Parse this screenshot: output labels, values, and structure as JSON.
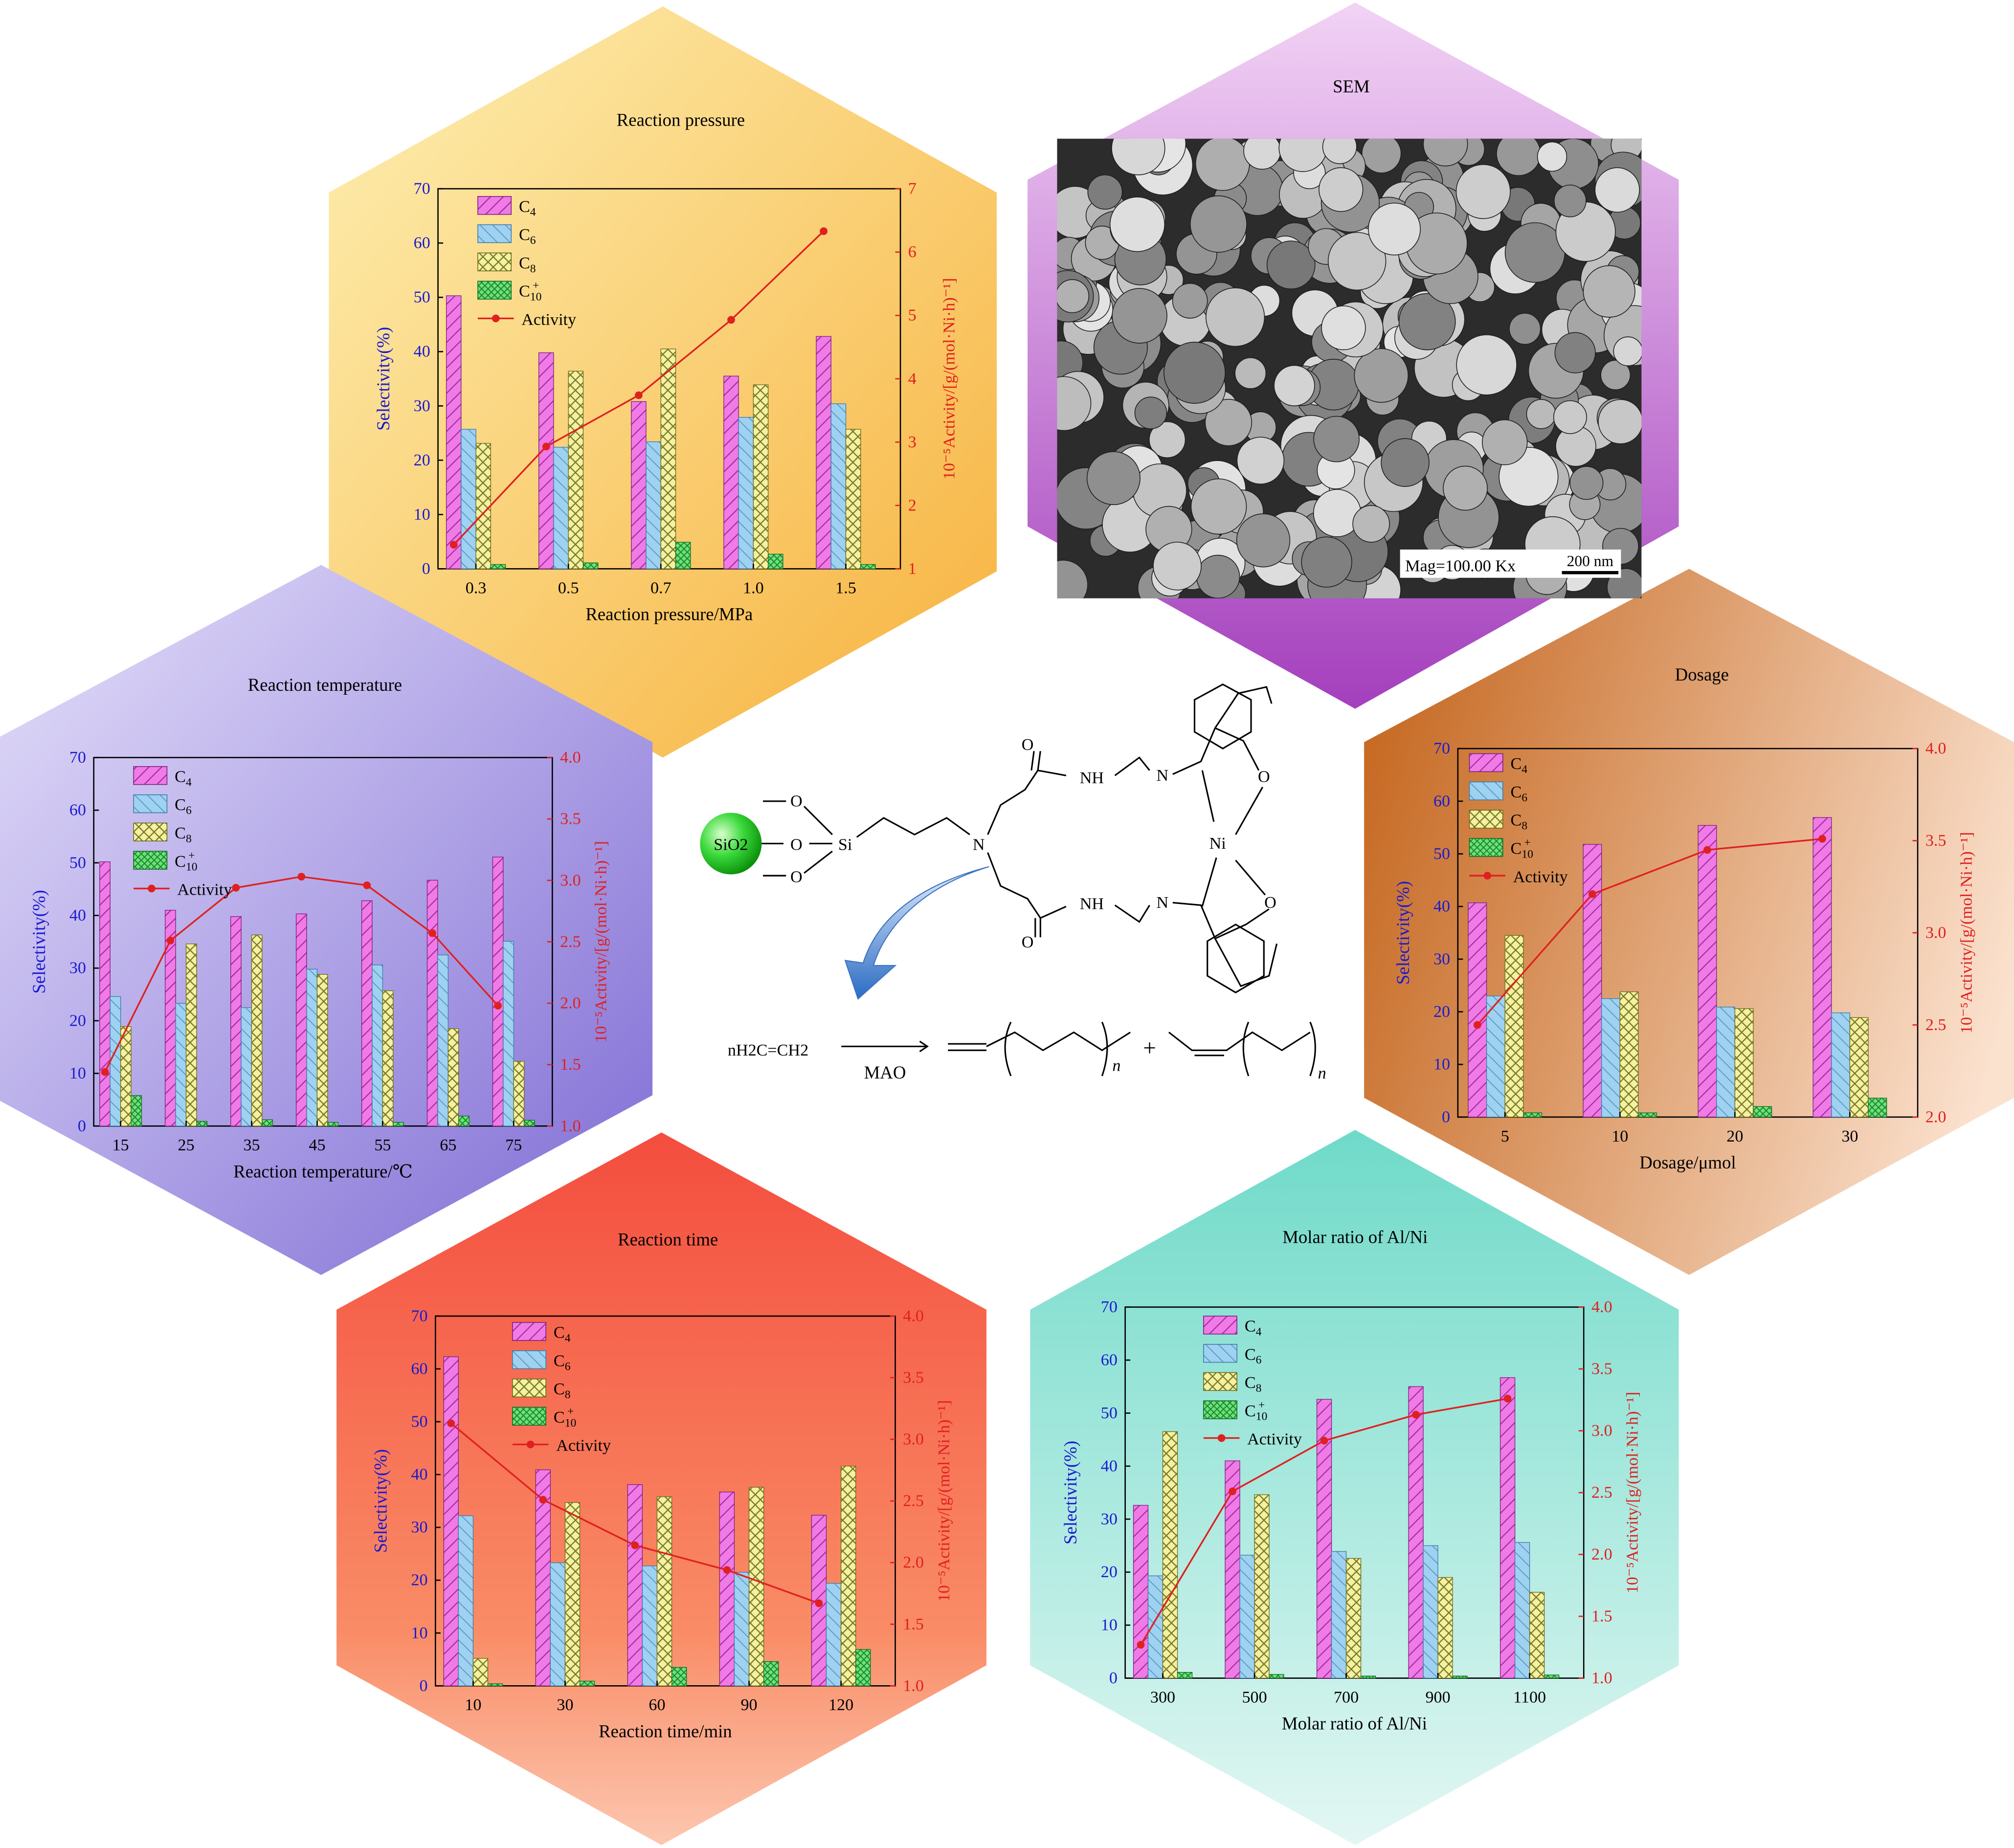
{
  "panels": {
    "sem": {
      "title": "SEM",
      "scale_label": "Mag=100.00 Kx",
      "scale_bar": "200 nm"
    }
  },
  "scheme": {
    "support_label": "SiO2",
    "reagent": "nH2C=CH2",
    "cocatalyst": "MAO",
    "plus": "+",
    "metal": "Ni",
    "n_label": "n"
  },
  "chart_data": [
    {
      "type": "bar",
      "title": "Reaction pressure",
      "xlabel": "Reaction pressure/MPa",
      "ylabel": "Selectivity(%)",
      "y2label": "10⁻⁵Activity/[g/(mol·Ni·h)⁻¹]",
      "categories": [
        "0.3",
        "0.5",
        "0.7",
        "1.0",
        "1.5"
      ],
      "ylim": [
        0,
        70
      ],
      "y2lim": [
        1,
        7
      ],
      "yticks": [
        "0",
        "10",
        "20",
        "30",
        "40",
        "50",
        "60",
        "70"
      ],
      "y2ticks": [
        "1",
        "2",
        "3",
        "4",
        "5",
        "6",
        "7"
      ],
      "series": [
        {
          "name": "C4",
          "values": [
            50.3,
            39.8,
            30.8,
            35.5,
            42.8
          ]
        },
        {
          "name": "C6",
          "values": [
            25.7,
            22.4,
            23.4,
            27.9,
            30.4
          ]
        },
        {
          "name": "C8",
          "values": [
            23.1,
            36.4,
            40.5,
            33.9,
            25.7
          ]
        },
        {
          "name": "C10+",
          "values": [
            0.8,
            1.1,
            4.9,
            2.7,
            0.8
          ]
        }
      ],
      "line": {
        "name": "Activity",
        "values": [
          1.38,
          2.93,
          3.74,
          4.93,
          6.33
        ]
      },
      "legend": "top-left"
    },
    {
      "type": "bar",
      "title": "Reaction temperature",
      "xlabel": "Reaction temperature/℃",
      "ylabel": "Selectivity(%)",
      "y2label": "10⁻⁵Activity/[g/(mol·Ni·h)⁻¹]",
      "categories": [
        "15",
        "25",
        "35",
        "45",
        "55",
        "65",
        "75"
      ],
      "ylim": [
        0,
        70
      ],
      "y2lim": [
        1.0,
        4.0
      ],
      "yticks": [
        "0",
        "10",
        "20",
        "30",
        "40",
        "50",
        "60",
        "70"
      ],
      "y2ticks": [
        "1.0",
        "1.5",
        "2.0",
        "2.5",
        "3.0",
        "3.5",
        "4.0"
      ],
      "series": [
        {
          "name": "C4",
          "values": [
            50.2,
            41.0,
            39.8,
            40.3,
            42.8,
            46.7,
            51.1
          ]
        },
        {
          "name": "C6",
          "values": [
            24.6,
            23.3,
            22.5,
            29.8,
            30.6,
            32.5,
            35.1
          ]
        },
        {
          "name": "C8",
          "values": [
            18.9,
            34.6,
            36.3,
            28.8,
            25.7,
            18.5,
            12.3
          ]
        },
        {
          "name": "C10+",
          "values": [
            5.8,
            0.9,
            1.2,
            0.7,
            0.7,
            1.9,
            1.1
          ]
        }
      ],
      "line": {
        "name": "Activity",
        "values": [
          1.44,
          2.51,
          2.94,
          3.03,
          2.96,
          2.57,
          1.98
        ]
      },
      "legend": "top-left"
    },
    {
      "type": "bar",
      "title": "Dosage",
      "xlabel": "Dosage/μmol",
      "ylabel": "Selectivity(%)",
      "y2label": "10⁻⁵Activity/[g/(mol·Ni·h)⁻¹]",
      "categories": [
        "5",
        "10",
        "20",
        "30"
      ],
      "ylim": [
        0,
        70
      ],
      "y2lim": [
        2.0,
        4.0
      ],
      "yticks": [
        "0",
        "10",
        "20",
        "30",
        "40",
        "50",
        "60",
        "70"
      ],
      "y2ticks": [
        "2.0",
        "2.5",
        "3.0",
        "3.5",
        "4.0"
      ],
      "series": [
        {
          "name": "C4",
          "values": [
            40.7,
            51.8,
            55.4,
            56.9
          ]
        },
        {
          "name": "C6",
          "values": [
            23.0,
            22.5,
            20.9,
            19.8
          ]
        },
        {
          "name": "C8",
          "values": [
            34.5,
            23.8,
            20.6,
            18.9
          ]
        },
        {
          "name": "C10+",
          "values": [
            0.8,
            0.8,
            2.0,
            3.6
          ]
        }
      ],
      "line": {
        "name": "Activity",
        "values": [
          2.5,
          3.21,
          3.45,
          3.51
        ]
      },
      "legend": "top-left"
    },
    {
      "type": "bar",
      "title": "Reaction time",
      "xlabel": "Reaction time/min",
      "ylabel": "Selectivity(%)",
      "y2label": "10⁻⁵Activity/[g/(mol·Ni·h)⁻¹]",
      "categories": [
        "10",
        "30",
        "60",
        "90",
        "120"
      ],
      "ylim": [
        0,
        70
      ],
      "y2lim": [
        1.0,
        4.0
      ],
      "yticks": [
        "0",
        "10",
        "20",
        "30",
        "40",
        "50",
        "60",
        "70"
      ],
      "y2ticks": [
        "1.0",
        "1.5",
        "2.0",
        "2.5",
        "3.0",
        "3.5",
        "4.0"
      ],
      "series": [
        {
          "name": "C4",
          "values": [
            62.3,
            40.9,
            38.1,
            36.7,
            32.3
          ]
        },
        {
          "name": "C6",
          "values": [
            32.2,
            23.3,
            22.7,
            21.5,
            19.4
          ]
        },
        {
          "name": "C8",
          "values": [
            5.2,
            34.7,
            35.8,
            37.6,
            41.6
          ]
        },
        {
          "name": "C10+",
          "values": [
            0.4,
            0.9,
            3.5,
            4.6,
            6.9
          ]
        }
      ],
      "line": {
        "name": "Activity",
        "values": [
          3.13,
          2.51,
          2.14,
          1.94,
          1.67
        ]
      },
      "legend": "top-left"
    },
    {
      "type": "bar",
      "title": "Molar ratio of Al/Ni",
      "xlabel": "Molar ratio of Al/Ni",
      "ylabel": "Selectivity(%)",
      "y2label": "10⁻⁵Activity/[g/(mol·Ni·h)⁻¹]",
      "categories": [
        "300",
        "500",
        "700",
        "900",
        "1100"
      ],
      "ylim": [
        0,
        70
      ],
      "y2lim": [
        1.0,
        4.0
      ],
      "yticks": [
        "0",
        "10",
        "20",
        "30",
        "40",
        "50",
        "60",
        "70"
      ],
      "y2ticks": [
        "1.0",
        "1.5",
        "2.0",
        "2.5",
        "3.0",
        "3.5",
        "4.0"
      ],
      "series": [
        {
          "name": "C4",
          "values": [
            32.6,
            41.0,
            52.6,
            55.0,
            56.7
          ]
        },
        {
          "name": "C6",
          "values": [
            19.3,
            23.2,
            23.9,
            25.0,
            25.6
          ]
        },
        {
          "name": "C8",
          "values": [
            46.5,
            34.6,
            22.6,
            19.0,
            16.2
          ]
        },
        {
          "name": "C10+",
          "values": [
            1.1,
            0.7,
            0.4,
            0.4,
            0.6
          ]
        }
      ],
      "line": {
        "name": "Activity",
        "values": [
          1.27,
          2.51,
          2.92,
          3.13,
          3.26
        ]
      },
      "legend": "top-left"
    }
  ]
}
